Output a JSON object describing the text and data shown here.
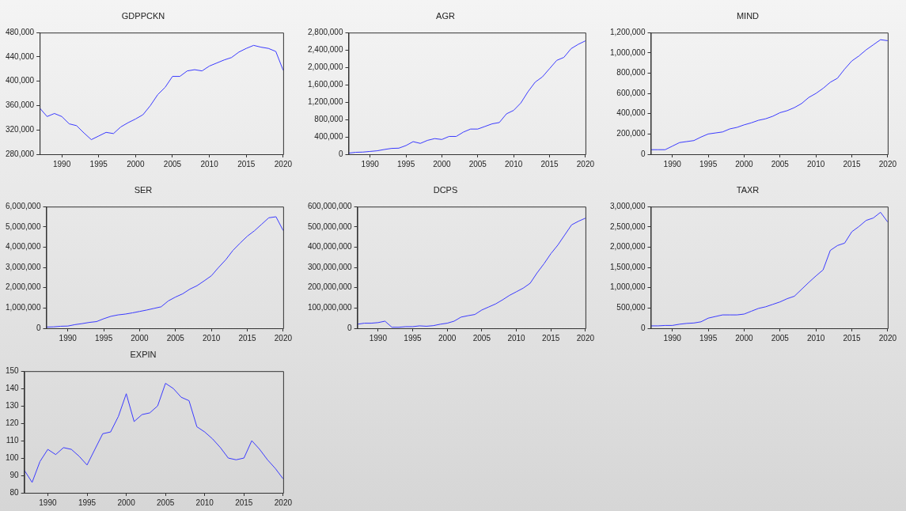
{
  "chart_data": [
    {
      "type": "line",
      "title": "GDPPCKN",
      "marker": "none",
      "x": [
        1987,
        1988,
        1989,
        1990,
        1991,
        1992,
        1993,
        1994,
        1995,
        1996,
        1997,
        1998,
        1999,
        2000,
        2001,
        2002,
        2003,
        2004,
        2005,
        2006,
        2007,
        2008,
        2009,
        2010,
        2011,
        2012,
        2013,
        2014,
        2015,
        2016,
        2017,
        2018,
        2019,
        2020
      ],
      "xlim": [
        1987,
        2020
      ],
      "xticks": [
        1990,
        1995,
        2000,
        2005,
        2010,
        2015,
        2020
      ],
      "ylim": [
        280000,
        480000
      ],
      "yticks": [
        {
          "value": 280000,
          "label": "280,000"
        },
        {
          "value": 320000,
          "label": "320,000"
        },
        {
          "value": 360000,
          "label": "360,000"
        },
        {
          "value": 400000,
          "label": "400,000"
        },
        {
          "value": 440000,
          "label": "440,000"
        },
        {
          "value": 480000,
          "label": "480,000"
        }
      ],
      "series": [
        {
          "color": "#3a3aff",
          "values": [
            356000,
            342000,
            347000,
            342000,
            330000,
            327000,
            315000,
            304000,
            310000,
            316000,
            314000,
            325000,
            332000,
            338000,
            345000,
            360000,
            378000,
            390000,
            408000,
            408000,
            417000,
            419000,
            417000,
            425000,
            430000,
            435000,
            439000,
            448000,
            454000,
            459000,
            456000,
            454000,
            449000,
            418000
          ]
        }
      ]
    },
    {
      "type": "line",
      "title": "AGR",
      "marker": "none",
      "x": [
        1987,
        1988,
        1989,
        1990,
        1991,
        1992,
        1993,
        1994,
        1995,
        1996,
        1997,
        1998,
        1999,
        2000,
        2001,
        2002,
        2003,
        2004,
        2005,
        2006,
        2007,
        2008,
        2009,
        2010,
        2011,
        2012,
        2013,
        2014,
        2015,
        2016,
        2017,
        2018,
        2019,
        2020
      ],
      "xlim": [
        1987,
        2020
      ],
      "xticks": [
        1990,
        1995,
        2000,
        2005,
        2010,
        2015,
        2020
      ],
      "ylim": [
        0,
        2800000
      ],
      "yticks": [
        0,
        {
          "value": 400000,
          "label": "400,000"
        },
        {
          "value": 800000,
          "label": "800,000"
        },
        {
          "value": 1200000,
          "label": "1,200,000"
        },
        {
          "value": 1600000,
          "label": "1,600,000"
        },
        {
          "value": 2000000,
          "label": "2,000,000"
        },
        {
          "value": 2400000,
          "label": "2,400,000"
        },
        {
          "value": 2800000,
          "label": "2,800,000"
        }
      ],
      "series": [
        {
          "color": "#3a3aff",
          "values": [
            25000,
            45000,
            50000,
            65000,
            80000,
            110000,
            135000,
            140000,
            200000,
            290000,
            250000,
            320000,
            360000,
            340000,
            410000,
            410000,
            510000,
            580000,
            580000,
            640000,
            700000,
            730000,
            930000,
            1010000,
            1180000,
            1440000,
            1660000,
            1780000,
            1970000,
            2160000,
            2230000,
            2430000,
            2530000,
            2610000
          ]
        }
      ]
    },
    {
      "type": "line",
      "title": "MIND",
      "marker": "none",
      "x": [
        1987,
        1988,
        1989,
        1990,
        1991,
        1992,
        1993,
        1994,
        1995,
        1996,
        1997,
        1998,
        1999,
        2000,
        2001,
        2002,
        2003,
        2004,
        2005,
        2006,
        2007,
        2008,
        2009,
        2010,
        2011,
        2012,
        2013,
        2014,
        2015,
        2016,
        2017,
        2018,
        2019,
        2020
      ],
      "xlim": [
        1987,
        2020
      ],
      "xticks": [
        1990,
        1995,
        2000,
        2005,
        2010,
        2015,
        2020
      ],
      "ylim": [
        0,
        1200000
      ],
      "yticks": [
        0,
        {
          "value": 200000,
          "label": "200,000"
        },
        {
          "value": 400000,
          "label": "400,000"
        },
        {
          "value": 600000,
          "label": "600,000"
        },
        {
          "value": 800000,
          "label": "800,000"
        },
        {
          "value": 1000000,
          "label": "1,000,000"
        },
        {
          "value": 1200000,
          "label": "1,200,000"
        }
      ],
      "series": [
        {
          "color": "#3a3aff",
          "values": [
            45000,
            45000,
            45000,
            80000,
            115000,
            125000,
            135000,
            170000,
            200000,
            210000,
            220000,
            250000,
            265000,
            290000,
            310000,
            335000,
            350000,
            375000,
            410000,
            430000,
            460000,
            500000,
            560000,
            600000,
            650000,
            710000,
            750000,
            840000,
            920000,
            970000,
            1030000,
            1080000,
            1130000,
            1120000
          ]
        }
      ]
    },
    {
      "type": "line",
      "title": "SER",
      "marker": "none",
      "x": [
        1987,
        1988,
        1989,
        1990,
        1991,
        1992,
        1993,
        1994,
        1995,
        1996,
        1997,
        1998,
        1999,
        2000,
        2001,
        2002,
        2003,
        2004,
        2005,
        2006,
        2007,
        2008,
        2009,
        2010,
        2011,
        2012,
        2013,
        2014,
        2015,
        2016,
        2017,
        2018,
        2019,
        2020
      ],
      "xlim": [
        1987,
        2020
      ],
      "xticks": [
        1990,
        1995,
        2000,
        2005,
        2010,
        2015,
        2020
      ],
      "ylim": [
        0,
        6000000
      ],
      "yticks": [
        0,
        {
          "value": 1000000,
          "label": "1,000,000"
        },
        {
          "value": 2000000,
          "label": "2,000,000"
        },
        {
          "value": 3000000,
          "label": "3,000,000"
        },
        {
          "value": 4000000,
          "label": "4,000,000"
        },
        {
          "value": 5000000,
          "label": "5,000,000"
        },
        {
          "value": 6000000,
          "label": "6,000,000"
        }
      ],
      "series": [
        {
          "color": "#3a3aff",
          "values": [
            60000,
            70000,
            100000,
            110000,
            180000,
            230000,
            290000,
            330000,
            470000,
            590000,
            660000,
            700000,
            760000,
            830000,
            900000,
            980000,
            1060000,
            1350000,
            1540000,
            1700000,
            1930000,
            2100000,
            2340000,
            2590000,
            3000000,
            3380000,
            3840000,
            4200000,
            4540000,
            4810000,
            5130000,
            5450000,
            5500000,
            4820000
          ]
        }
      ]
    },
    {
      "type": "line",
      "title": "DCPS",
      "marker": "none",
      "x": [
        1987,
        1988,
        1989,
        1990,
        1991,
        1992,
        1993,
        1994,
        1995,
        1996,
        1997,
        1998,
        1999,
        2000,
        2001,
        2002,
        2003,
        2004,
        2005,
        2006,
        2007,
        2008,
        2009,
        2010,
        2011,
        2012,
        2013,
        2014,
        2015,
        2016,
        2017,
        2018,
        2019,
        2020
      ],
      "xlim": [
        1987,
        2020
      ],
      "xticks": [
        1990,
        1995,
        2000,
        2005,
        2010,
        2015,
        2020
      ],
      "ylim": [
        0,
        600000000
      ],
      "yticks": [
        0,
        {
          "value": 100000000,
          "label": "100,000,000"
        },
        {
          "value": 200000000,
          "label": "200,000,000"
        },
        {
          "value": 300000000,
          "label": "300,000,000"
        },
        {
          "value": 400000000,
          "label": "400,000,000"
        },
        {
          "value": 500000000,
          "label": "500,000,000"
        },
        {
          "value": 600000000,
          "label": "600,000,000"
        }
      ],
      "series": [
        {
          "color": "#3a3aff",
          "values": [
            20000000,
            25000000,
            25000000,
            28000000,
            35000000,
            5000000,
            5000000,
            8000000,
            8000000,
            12000000,
            10000000,
            13000000,
            20000000,
            25000000,
            35000000,
            55000000,
            62000000,
            68000000,
            90000000,
            105000000,
            120000000,
            140000000,
            162000000,
            180000000,
            198000000,
            222000000,
            273000000,
            318000000,
            368000000,
            410000000,
            460000000,
            510000000,
            528000000,
            543000000
          ]
        }
      ]
    },
    {
      "type": "line",
      "title": "TAXR",
      "marker": "none",
      "x": [
        1987,
        1988,
        1989,
        1990,
        1991,
        1992,
        1993,
        1994,
        1995,
        1996,
        1997,
        1998,
        1999,
        2000,
        2001,
        2002,
        2003,
        2004,
        2005,
        2006,
        2007,
        2008,
        2009,
        2010,
        2011,
        2012,
        2013,
        2014,
        2015,
        2016,
        2017,
        2018,
        2019,
        2020
      ],
      "xlim": [
        1987,
        2020
      ],
      "xticks": [
        1990,
        1995,
        2000,
        2005,
        2010,
        2015,
        2020
      ],
      "ylim": [
        0,
        3000000
      ],
      "yticks": [
        0,
        {
          "value": 500000,
          "label": "500,000"
        },
        {
          "value": 1000000,
          "label": "1,000,000"
        },
        {
          "value": 1500000,
          "label": "1,500,000"
        },
        {
          "value": 2000000,
          "label": "2,000,000"
        },
        {
          "value": 2500000,
          "label": "2,500,000"
        },
        {
          "value": 3000000,
          "label": "3,000,000"
        }
      ],
      "series": [
        {
          "color": "#3a3aff",
          "values": [
            60000,
            60000,
            70000,
            70000,
            100000,
            120000,
            130000,
            160000,
            250000,
            290000,
            330000,
            330000,
            330000,
            350000,
            420000,
            490000,
            530000,
            590000,
            650000,
            730000,
            790000,
            960000,
            1130000,
            1290000,
            1440000,
            1920000,
            2040000,
            2100000,
            2380000,
            2510000,
            2660000,
            2720000,
            2860000,
            2620000
          ]
        }
      ]
    },
    {
      "type": "line",
      "title": "EXPIN",
      "marker": "none",
      "x": [
        1987,
        1988,
        1989,
        1990,
        1991,
        1992,
        1993,
        1994,
        1995,
        1996,
        1997,
        1998,
        1999,
        2000,
        2001,
        2002,
        2003,
        2004,
        2005,
        2006,
        2007,
        2008,
        2009,
        2010,
        2011,
        2012,
        2013,
        2014,
        2015,
        2016,
        2017,
        2018,
        2019,
        2020
      ],
      "xlim": [
        1987,
        2020
      ],
      "xticks": [
        1990,
        1995,
        2000,
        2005,
        2010,
        2015,
        2020
      ],
      "ylim": [
        80,
        150
      ],
      "yticks": [
        80,
        90,
        100,
        110,
        120,
        130,
        140,
        150
      ],
      "series": [
        {
          "color": "#3a3aff",
          "values": [
            93,
            86,
            98,
            105,
            102,
            106,
            105,
            101,
            96,
            105,
            114,
            115,
            124,
            137,
            121,
            125,
            126,
            130,
            143,
            140,
            135,
            133,
            118,
            115,
            111,
            106,
            100,
            99,
            100,
            110,
            105,
            99,
            94,
            88
          ]
        }
      ]
    }
  ]
}
